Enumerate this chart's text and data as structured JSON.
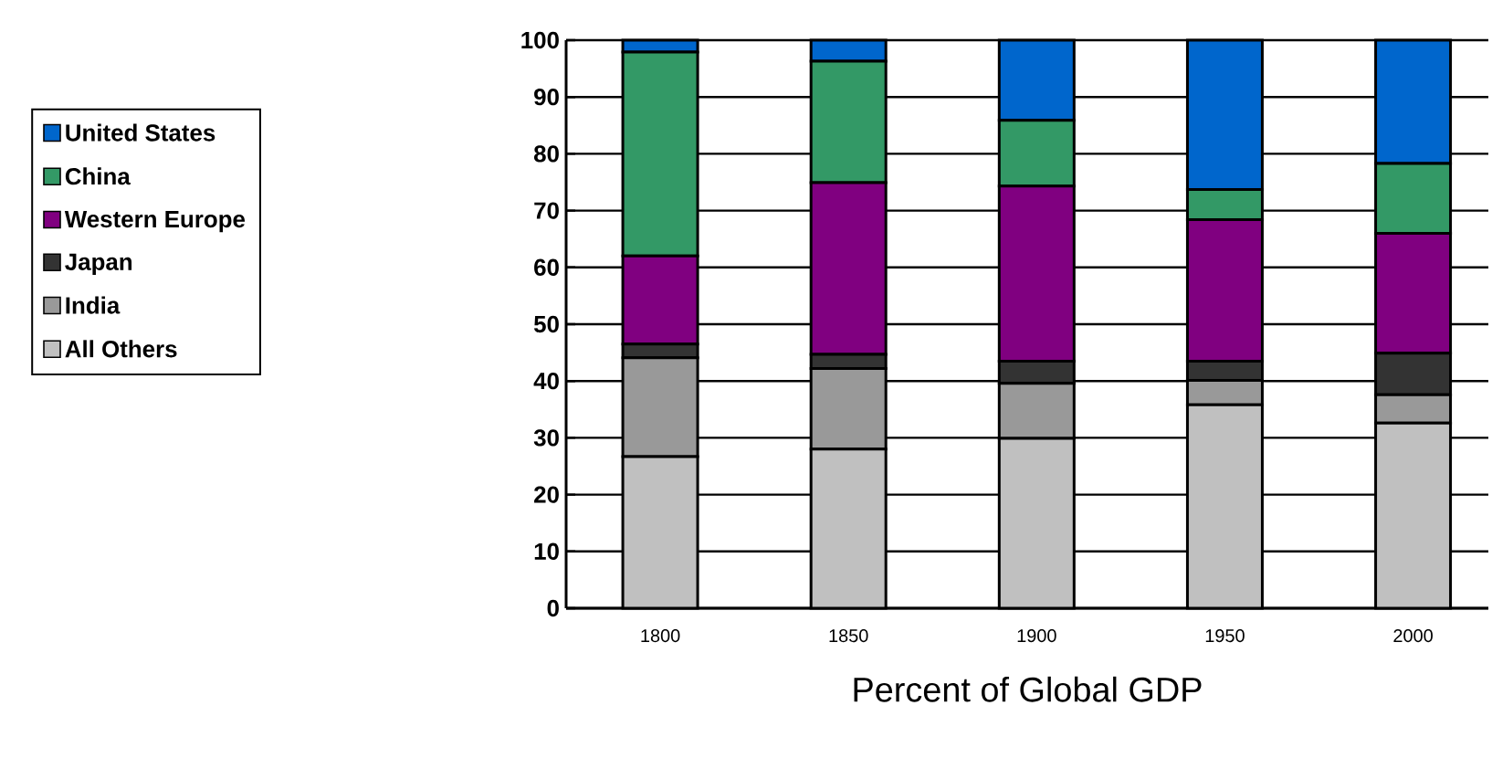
{
  "chart_data": {
    "type": "bar",
    "stacked": true,
    "xlabel": "Percent of Global GDP",
    "categories": [
      "1800",
      "1850",
      "1900",
      "1950",
      "2000"
    ],
    "series": [
      {
        "name": "All Others",
        "color": "#c0c0c0",
        "values": [
          26.7,
          28.0,
          29.9,
          35.8,
          32.6
        ]
      },
      {
        "name": "India",
        "color": "#999999",
        "values": [
          17.4,
          14.2,
          9.7,
          4.3,
          5.0
        ]
      },
      {
        "name": "Japan",
        "color": "#333333",
        "values": [
          2.4,
          2.5,
          3.9,
          3.4,
          7.3
        ]
      },
      {
        "name": "Western Europe",
        "color": "#800080",
        "values": [
          15.5,
          30.2,
          30.8,
          24.9,
          21.1
        ]
      },
      {
        "name": "China",
        "color": "#339966",
        "values": [
          35.9,
          21.4,
          11.6,
          5.3,
          12.3
        ]
      },
      {
        "name": "United States",
        "color": "#0066cc",
        "values": [
          2.1,
          3.7,
          14.1,
          26.3,
          21.7
        ]
      }
    ],
    "ylim": [
      0,
      100
    ],
    "yticks": [
      0,
      10,
      20,
      30,
      40,
      50,
      60,
      70,
      80,
      90,
      100
    ],
    "grid": "y",
    "legend": "left"
  }
}
